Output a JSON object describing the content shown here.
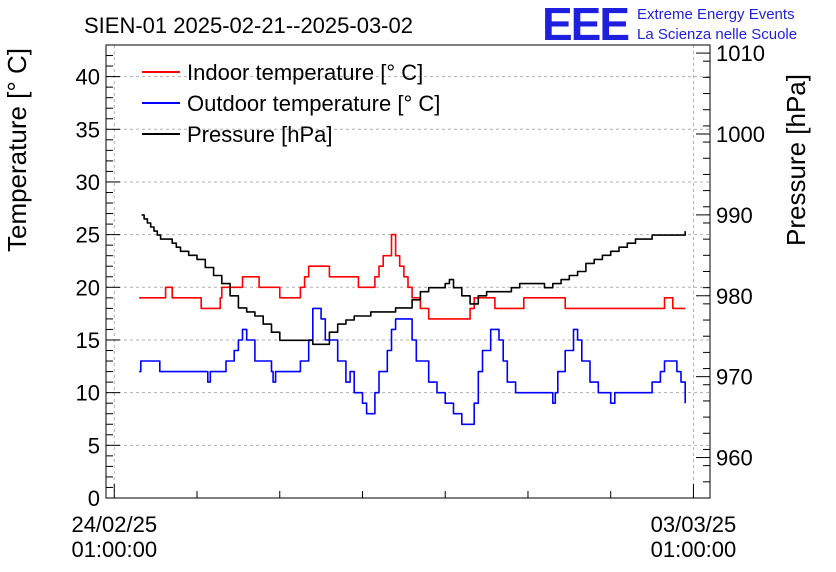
{
  "chart_data": {
    "type": "line",
    "title": "SIEN-01 2025-02-21--2025-03-02",
    "ylabel_left": "Temperature [° C]",
    "ylabel_right": "Pressure [hPa]",
    "ylim_left": [
      0,
      43
    ],
    "ylim_right": [
      955,
      1011
    ],
    "yticks_left": [
      "0",
      "5",
      "10",
      "15",
      "20",
      "25",
      "30",
      "35",
      "40"
    ],
    "yticks_right": [
      "960",
      "970",
      "980",
      "990",
      "1000",
      "1010"
    ],
    "xlim": [
      -0.1,
      7.2
    ],
    "xticks": [
      {
        "x": 0,
        "date": "24/02/25",
        "time": "01:00:00"
      },
      {
        "x": 7,
        "date": "03/03/25",
        "time": "01:00:00"
      }
    ],
    "grid": true,
    "legend_position": "top-left",
    "series": [
      {
        "name": "Indoor temperature [° C]",
        "color": "#ff0000",
        "axis": "left",
        "x": [
          0.3,
          0.6,
          0.62,
          0.66,
          0.7,
          1.0,
          1.05,
          1.2,
          1.28,
          1.3,
          1.5,
          1.55,
          1.7,
          1.75,
          1.95,
          2.0,
          2.2,
          2.25,
          2.3,
          2.35,
          2.55,
          2.6,
          2.9,
          2.95,
          3.1,
          3.15,
          3.2,
          3.25,
          3.35,
          3.4,
          3.45,
          3.5,
          3.55,
          3.6,
          3.7,
          3.8,
          4.1,
          4.3,
          4.35,
          4.55,
          4.6,
          4.9,
          4.95,
          5.3,
          5.4,
          5.45,
          5.5,
          5.65,
          6.6,
          6.65,
          6.7,
          6.75,
          6.9
        ],
        "values": [
          19,
          19,
          20,
          20,
          19,
          19,
          18,
          18,
          19,
          20,
          20,
          21,
          21,
          20,
          20,
          19,
          19,
          20,
          21,
          22,
          22,
          21,
          21,
          20,
          20,
          21,
          22,
          23,
          25,
          23,
          22,
          21,
          20,
          19,
          18,
          17,
          17,
          18,
          19,
          19,
          18,
          18,
          19,
          19,
          19,
          18,
          18,
          18,
          18,
          19,
          19,
          18,
          18
        ]
      },
      {
        "name": "Outdoor temperature [° C]",
        "color": "#0000ff",
        "axis": "left",
        "x": [
          0.3,
          0.32,
          0.35,
          0.5,
          0.55,
          1.1,
          1.13,
          1.16,
          1.3,
          1.35,
          1.45,
          1.5,
          1.55,
          1.6,
          1.7,
          1.9,
          1.92,
          1.95,
          2.2,
          2.25,
          2.35,
          2.4,
          2.5,
          2.55,
          2.7,
          2.8,
          2.85,
          2.9,
          3.0,
          3.05,
          3.15,
          3.2,
          3.3,
          3.35,
          3.4,
          3.5,
          3.6,
          3.65,
          3.8,
          3.9,
          4.0,
          4.1,
          4.15,
          4.2,
          4.3,
          4.35,
          4.4,
          4.45,
          4.55,
          4.65,
          4.7,
          4.75,
          4.85,
          4.95,
          5.15,
          5.3,
          5.33,
          5.36,
          5.45,
          5.55,
          5.6,
          5.65,
          5.75,
          5.85,
          5.95,
          6.0,
          6.05,
          6.45,
          6.5,
          6.6,
          6.65,
          6.75,
          6.8,
          6.85,
          6.9
        ],
        "values": [
          12,
          13,
          13,
          13,
          12,
          12,
          11,
          12,
          12,
          13,
          14,
          15,
          16,
          15,
          13,
          12,
          11,
          12,
          12,
          13,
          15,
          18,
          17,
          15,
          13,
          11,
          12,
          10,
          9,
          8,
          10,
          12,
          14,
          16,
          17,
          17,
          15,
          13,
          11,
          10,
          9,
          8,
          8,
          7,
          7,
          9,
          12,
          14,
          16,
          15,
          13,
          11,
          10,
          10,
          10,
          9,
          10,
          12,
          14,
          16,
          15,
          13,
          11,
          10,
          10,
          9,
          10,
          10,
          11,
          12,
          13,
          13,
          12,
          11,
          9
        ]
      },
      {
        "name": "Pressure [hPa]",
        "color": "#000000",
        "axis": "right",
        "x": [
          0.33,
          0.36,
          0.4,
          0.44,
          0.48,
          0.52,
          0.56,
          0.6,
          0.65,
          0.7,
          0.75,
          0.8,
          0.9,
          1.0,
          1.1,
          1.2,
          1.3,
          1.4,
          1.5,
          1.6,
          1.7,
          1.8,
          1.9,
          2.0,
          2.1,
          2.2,
          2.3,
          2.4,
          2.5,
          2.6,
          2.7,
          2.8,
          2.9,
          3.0,
          3.1,
          3.2,
          3.3,
          3.4,
          3.5,
          3.6,
          3.7,
          3.8,
          3.9,
          4.0,
          4.05,
          4.1,
          4.2,
          4.3,
          4.4,
          4.5,
          4.6,
          4.7,
          4.8,
          4.9,
          5.0,
          5.1,
          5.2,
          5.3,
          5.4,
          5.5,
          5.6,
          5.7,
          5.8,
          5.9,
          6.0,
          6.1,
          6.2,
          6.3,
          6.4,
          6.5,
          6.6,
          6.7,
          6.8,
          6.9
        ],
        "values": [
          990,
          989.5,
          989,
          988.5,
          988,
          987.5,
          987,
          987,
          987,
          986.5,
          986,
          985.5,
          985,
          984.5,
          983.5,
          982.5,
          981.5,
          980,
          978.5,
          978,
          977.5,
          976.5,
          975.5,
          974.5,
          974.5,
          974.5,
          974.5,
          974,
          974,
          975.5,
          976.5,
          977,
          977.5,
          977.5,
          978,
          978,
          978,
          978.5,
          978.5,
          979.5,
          980.5,
          981,
          981,
          981.5,
          982,
          981,
          980,
          979,
          980,
          980.5,
          980.5,
          980.5,
          981,
          981.5,
          981.5,
          981.5,
          981,
          981.5,
          982,
          982.5,
          983,
          984,
          984.5,
          985,
          985.5,
          986,
          986.5,
          987,
          987,
          987.5,
          987.5,
          987.5,
          987.5,
          988
        ]
      }
    ],
    "logo": {
      "mark": "EEE",
      "line1": "Extreme Energy Events",
      "line2": "La Scienza nelle Scuole"
    }
  }
}
